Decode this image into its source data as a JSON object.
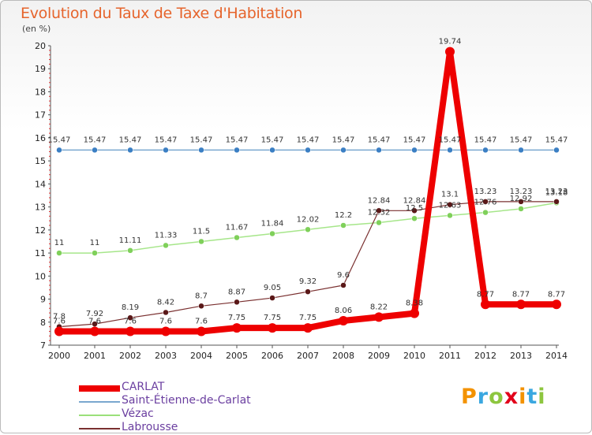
{
  "header": {
    "title": "Evolution du Taux de Taxe d'Habitation",
    "subtitle": "(en %)"
  },
  "brand": {
    "text": "Proxiti",
    "colors": [
      "#f39200",
      "#3aa7e0",
      "#8dc63f",
      "#e2001a"
    ]
  },
  "chart_data": {
    "type": "line",
    "title": "Evolution du Taux de Taxe d'Habitation",
    "ylabel": "(en %)",
    "xlabel": "",
    "x": [
      "2000",
      "2001",
      "2002",
      "2003",
      "2004",
      "2005",
      "2006",
      "2007",
      "2008",
      "2009",
      "2010",
      "2011",
      "2012",
      "2013",
      "2014"
    ],
    "ylim": [
      7,
      20
    ],
    "yticks": [
      7,
      8,
      9,
      10,
      11,
      12,
      13,
      14,
      15,
      16,
      17,
      18,
      19,
      20
    ],
    "grid": false,
    "legend": "bottom-left",
    "series": [
      {
        "name": "CARLAT",
        "color": "#ee0000",
        "values": [
          7.6,
          7.6,
          7.6,
          7.6,
          7.6,
          7.75,
          7.75,
          7.75,
          8.06,
          8.22,
          8.38,
          19.74,
          8.77,
          8.77,
          8.77
        ],
        "labels": [
          "7.6",
          "7.6",
          "7.6",
          "7.6",
          "7.6",
          "7.75",
          "7.75",
          "7.75",
          "8.06",
          "8.22",
          "8.38",
          "19.74",
          "8.77",
          "8.77",
          "8.77"
        ]
      },
      {
        "name": "Saint-Étienne-de-Carlat",
        "color": "#7aa7cf",
        "values": [
          15.47,
          15.47,
          15.47,
          15.47,
          15.47,
          15.47,
          15.47,
          15.47,
          15.47,
          15.47,
          15.47,
          15.47,
          15.47,
          15.47,
          15.47
        ],
        "labels": [
          "15.47",
          "15.47",
          "15.47",
          "15.47",
          "15.47",
          "15.47",
          "15.47",
          "15.47",
          "15.47",
          "15.47",
          "15.47",
          "15.47",
          "15.47",
          "15.47",
          "15.47"
        ]
      },
      {
        "name": "Vézac",
        "color": "#9be07a",
        "values": [
          11,
          11,
          11.11,
          11.33,
          11.5,
          11.67,
          11.84,
          12.02,
          12.2,
          12.32,
          12.5,
          12.63,
          12.76,
          12.92,
          13.18
        ],
        "labels": [
          "11",
          "11",
          "11.11",
          "11.33",
          "11.5",
          "11.67",
          "11.84",
          "12.02",
          "12.2",
          "12.32",
          "12.5",
          "12.63",
          "12.76",
          "12.92",
          "13.18"
        ]
      },
      {
        "name": "Labrousse",
        "color": "#7a3030",
        "values": [
          7.8,
          7.92,
          8.19,
          8.42,
          8.7,
          8.87,
          9.05,
          9.32,
          9.6,
          12.84,
          12.84,
          13.1,
          13.23,
          13.23,
          13.23
        ],
        "labels": [
          "7.8",
          "7.92",
          "8.19",
          "8.42",
          "8.7",
          "8.87",
          "9.05",
          "9.32",
          "9.6",
          "12.84",
          "12.84",
          "13.1",
          "13.23",
          "13.23",
          "13.23"
        ]
      }
    ]
  }
}
